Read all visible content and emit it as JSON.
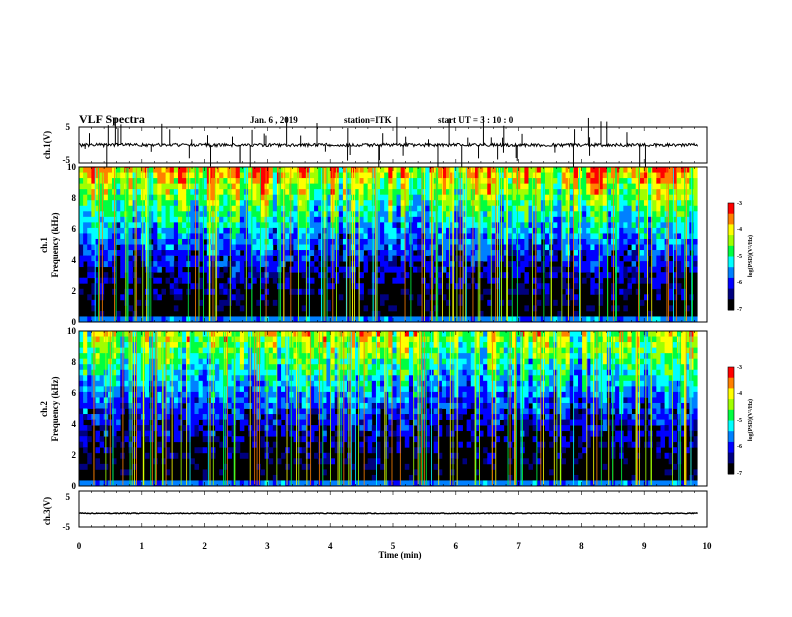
{
  "header": {
    "title": "VLF Spectra",
    "date": "Jan. 6 , 2019",
    "station": "station=ITK",
    "start": "start UT =  3 : 10 : 0"
  },
  "chart_data": [
    {
      "type": "line",
      "ylabel": "ch.1(V)",
      "ylim": [
        -5,
        5
      ],
      "yticks": [
        "5",
        "-5"
      ],
      "baseline": 0,
      "color": "#000000"
    },
    {
      "type": "heatmap",
      "ylabel_line1": "ch.1",
      "ylabel_line2": "Frequency (kHz)",
      "ylim": [
        0,
        10
      ],
      "yticks": [
        "0",
        "2",
        "4",
        "6",
        "8",
        "10"
      ],
      "colorbar": {
        "label": "log(PSD)(V²/Hz)",
        "range": [
          -7,
          -3
        ],
        "ticks": [
          "-3",
          "-4",
          "-5",
          "-6",
          "-7"
        ]
      }
    },
    {
      "type": "heatmap",
      "ylabel_line1": "ch.2",
      "ylabel_line2": "Frequency (kHz)",
      "ylim": [
        0,
        10
      ],
      "yticks": [
        "0",
        "2",
        "4",
        "6",
        "8",
        "10"
      ],
      "colorbar": {
        "label": "log(PSD)(V²/Hz)",
        "range": [
          -7,
          -3
        ],
        "ticks": [
          "-3",
          "-4",
          "-5",
          "-6",
          "-7"
        ]
      }
    },
    {
      "type": "line",
      "ylabel": "ch.3(V)",
      "ylim": [
        -5,
        5
      ],
      "yticks": [
        "5",
        "-5"
      ],
      "baseline": -1.2,
      "color": "#000000"
    }
  ],
  "xaxis": {
    "label": "Time (min)",
    "xlim": [
      0,
      10
    ],
    "ticks": [
      "0",
      "1",
      "2",
      "3",
      "4",
      "5",
      "6",
      "7",
      "8",
      "9",
      "10"
    ],
    "data_end": 9.85
  },
  "colors": {
    "colormap": [
      "#000000",
      "#00007f",
      "#0000ff",
      "#0080ff",
      "#00ffff",
      "#00ff40",
      "#a0ff00",
      "#ffff00",
      "#ff8000",
      "#ff0000",
      "#ffffff"
    ]
  }
}
